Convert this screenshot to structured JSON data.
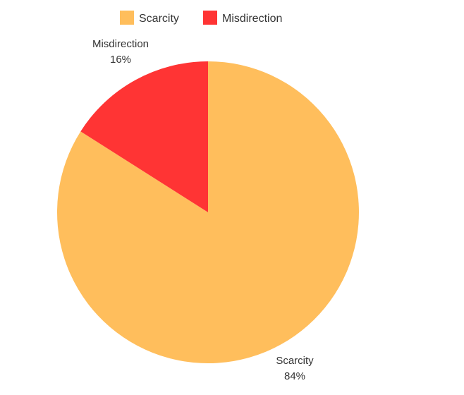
{
  "chart_data": {
    "type": "pie",
    "title": "",
    "legend_position": "top",
    "slices": [
      {
        "label": "Scarcity",
        "value": 84,
        "percent_label": "84%",
        "color": "#FFBE5C"
      },
      {
        "label": "Misdirection",
        "value": 16,
        "percent_label": "16%",
        "color": "#FF3434"
      }
    ]
  }
}
